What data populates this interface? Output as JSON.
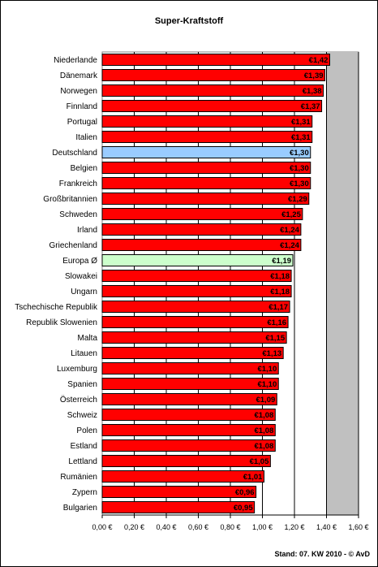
{
  "chart_data": {
    "type": "bar",
    "orientation": "horizontal",
    "title": "Super-Kraftstoff",
    "categories": [
      "Niederlande",
      "Dänemark",
      "Norwegen",
      "Finnland",
      "Portugal",
      "Italien",
      "Deutschland",
      "Belgien",
      "Frankreich",
      "Großbritannien",
      "Schweden",
      "Irland",
      "Griechenland",
      "Europa Ø",
      "Slowakei",
      "Ungarn",
      "Tschechische Republik",
      "Republik Slowenien",
      "Malta",
      "Litauen",
      "Luxemburg",
      "Spanien",
      "Österreich",
      "Schweiz",
      "Polen",
      "Estland",
      "Lettland",
      "Rumänien",
      "Zypern",
      "Bulgarien"
    ],
    "values": [
      1.42,
      1.39,
      1.38,
      1.37,
      1.31,
      1.31,
      1.3,
      1.3,
      1.3,
      1.29,
      1.25,
      1.24,
      1.24,
      1.19,
      1.18,
      1.18,
      1.17,
      1.16,
      1.15,
      1.13,
      1.1,
      1.1,
      1.09,
      1.08,
      1.08,
      1.08,
      1.05,
      1.01,
      0.96,
      0.95
    ],
    "data_labels": [
      "€1,42",
      "€1,39",
      "€1,38",
      "€1,37",
      "€1,31",
      "€1,31",
      "€1,30",
      "€1,30",
      "€1,30",
      "€1,29",
      "€1,25",
      "€1,24",
      "€1,24",
      "€1,19",
      "€1,18",
      "€1,18",
      "€1,17",
      "€1,16",
      "€1,15",
      "€1,13",
      "€1,10",
      "€1,10",
      "€1,09",
      "€1,08",
      "€1,08",
      "€1,08",
      "€1,05",
      "€1,01",
      "€0,96",
      "€0,95"
    ],
    "bar_colors": {
      "default": "#ff0000",
      "Deutschland": "#99ccff",
      "Europa Ø": "#ccffcc"
    },
    "xlim": [
      0,
      1.6
    ],
    "xticks": [
      "0,00 €",
      "0,20 €",
      "0,40 €",
      "0,60 €",
      "0,80 €",
      "1,00 €",
      "1,20 €",
      "1,40 €",
      "1,60 €"
    ],
    "grid": "vertical",
    "plot_background": "#ffffff",
    "shaded_background": "#c0c0c0",
    "legend": "none"
  },
  "footer": "Stand: 07. KW 2010 - © AvD"
}
